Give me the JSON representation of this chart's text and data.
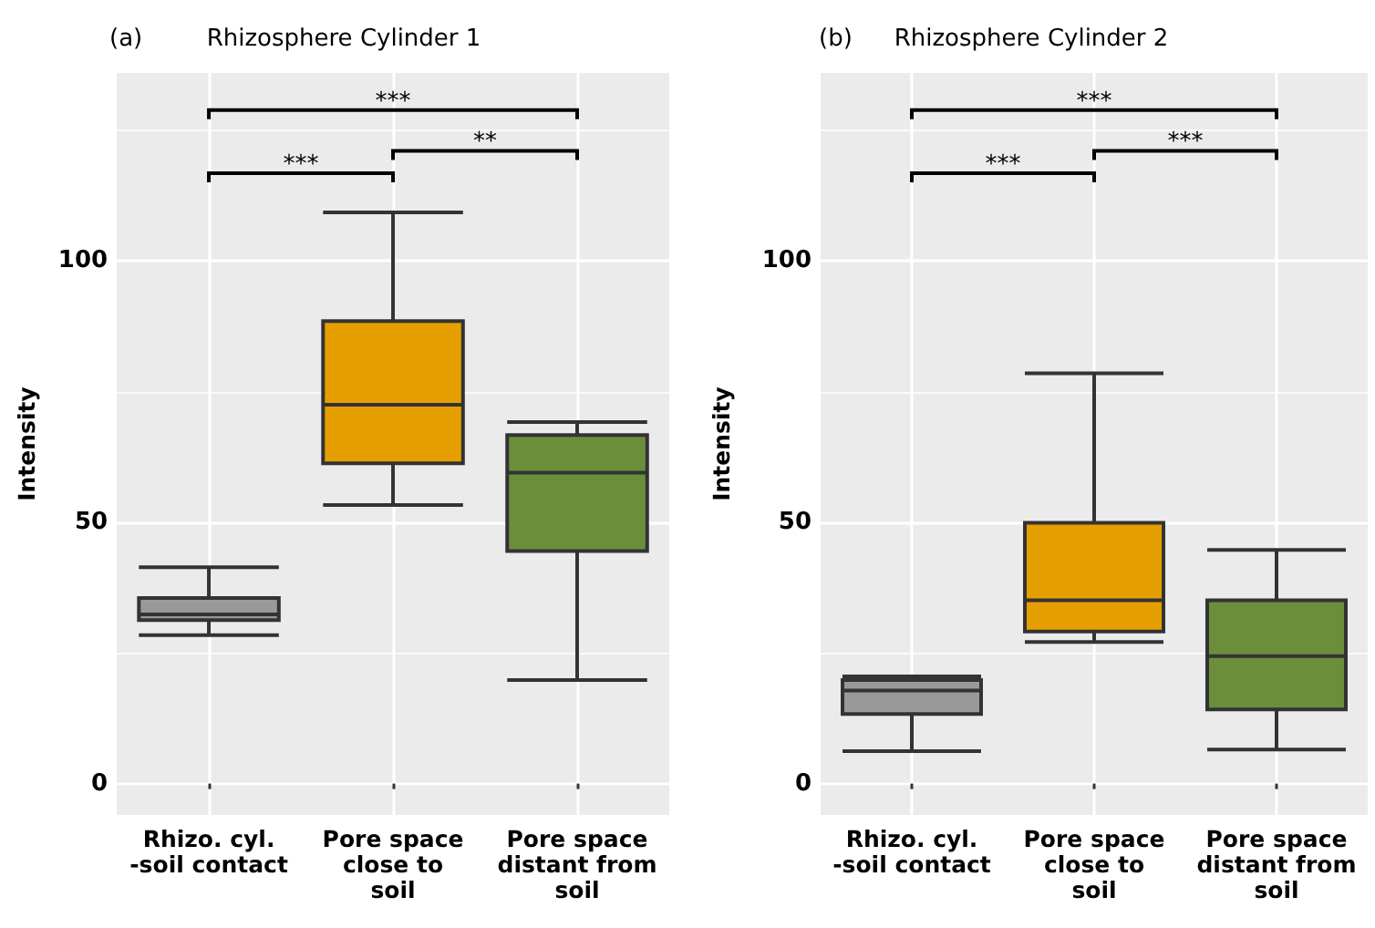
{
  "chart_data": [
    {
      "type": "box",
      "title": "Rhizosphere Cylinder 1",
      "ylabel": "Intensity",
      "categories": [
        "Rhizo. cyl.\n-soil contact",
        "Pore space\nclose to\nsoil",
        "Pore space\ndistant from\nsoil"
      ],
      "colors": [
        "#999999",
        "#e69f00",
        "#6b8e3a"
      ],
      "boxes": [
        {
          "low": 28.4,
          "q1": 31.3,
          "median": 32.4,
          "q3": 35.5,
          "high": 41.4
        },
        {
          "low": 53.3,
          "q1": 61.3,
          "median": 72.5,
          "q3": 88.5,
          "high": 109.3
        },
        {
          "low": 19.8,
          "q1": 44.5,
          "median": 59.5,
          "q3": 66.7,
          "high": 69.2
        }
      ],
      "ylim": [
        -6,
        136
      ],
      "yticks": [
        0,
        50,
        100
      ],
      "grid": true,
      "annotations": [
        "(a)",
        "***",
        "***",
        "**"
      ]
    },
    {
      "type": "box",
      "title": "Rhizosphere Cylinder 2",
      "ylabel": "Intensity",
      "categories": [
        "Rhizo. cyl.\n-soil contact",
        "Pore space\nclose to\nsoil",
        "Pore space\ndistant from\nsoil"
      ],
      "colors": [
        "#999999",
        "#e69f00",
        "#6b8e3a"
      ],
      "boxes": [
        {
          "low": 6.2,
          "q1": 13.3,
          "median": 17.8,
          "q3": 19.8,
          "high": 20.5
        },
        {
          "low": 27.1,
          "q1": 29.1,
          "median": 35.1,
          "q3": 49.9,
          "high": 78.5
        },
        {
          "low": 6.5,
          "q1": 14.2,
          "median": 24.4,
          "q3": 35.1,
          "high": 44.7
        }
      ],
      "ylim": [
        -6,
        136
      ],
      "yticks": [
        0,
        50,
        100
      ],
      "grid": true,
      "annotations": [
        "(b)",
        "***",
        "***",
        "***"
      ]
    }
  ]
}
